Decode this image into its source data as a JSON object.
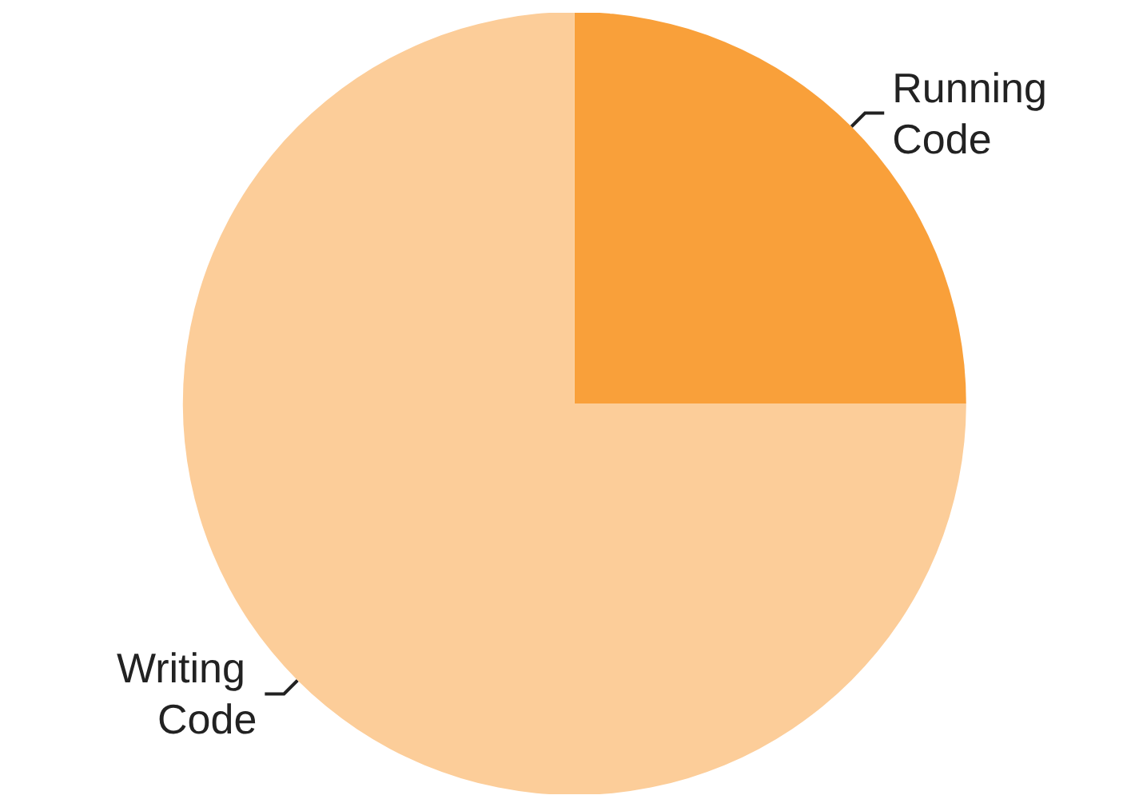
{
  "chart_data": {
    "type": "pie",
    "categories": [
      "Running Code",
      "Writing Code"
    ],
    "values": [
      25,
      75
    ],
    "colors": [
      "#f9a03a",
      "#fccd99"
    ]
  }
}
